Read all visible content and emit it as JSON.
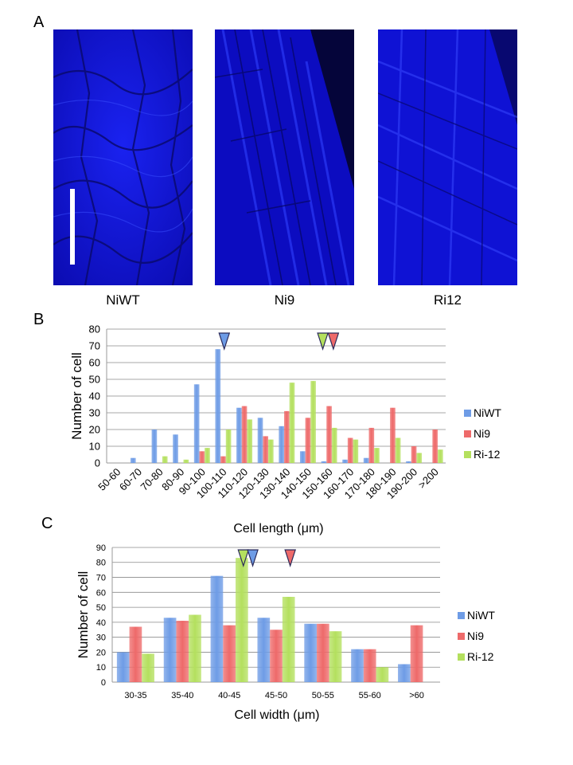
{
  "panels": {
    "a": {
      "letter": "A"
    },
    "b": {
      "letter": "B"
    },
    "c": {
      "letter": "C"
    }
  },
  "micrographs": [
    {
      "label": "NiWT"
    },
    {
      "label": "Ni9"
    },
    {
      "label": "Ri12"
    }
  ],
  "colors": {
    "series": [
      "#6e9ce6",
      "#ee6a6a",
      "#b4e05e"
    ],
    "micrograph_bg": "#1010d8",
    "arrow_outline": "#2a2a5a"
  },
  "chart_data": [
    {
      "type": "bar",
      "panel": "B",
      "xlabel": "Cell length (μm)",
      "ylabel": "Number of cell",
      "ylim": [
        0,
        80
      ],
      "yticks": [
        0,
        10,
        20,
        30,
        40,
        50,
        60,
        70,
        80
      ],
      "grid": true,
      "legend_position": "right",
      "categories": [
        "50-60",
        "60-70",
        "70-80",
        "80-90",
        "90-100",
        "100-110",
        "110-120",
        "120-130",
        "130-140",
        "140-150",
        "150-160",
        "160-170",
        "170-180",
        "180-190",
        "190-200",
        ">200"
      ],
      "series": [
        {
          "name": "NiWT",
          "values": [
            0,
            3,
            20,
            17,
            47,
            68,
            33,
            27,
            22,
            7,
            1,
            2,
            3,
            0,
            1,
            0
          ]
        },
        {
          "name": "Ni9",
          "values": [
            0,
            0,
            0,
            0,
            7,
            4,
            34,
            16,
            31,
            27,
            34,
            15,
            21,
            33,
            10,
            20
          ]
        },
        {
          "name": "Ri-12",
          "values": [
            0,
            0,
            4,
            2,
            9,
            20,
            26,
            14,
            48,
            49,
            21,
            14,
            9,
            15,
            6,
            8
          ]
        }
      ],
      "mean_markers": [
        {
          "series": "NiWT",
          "x": 105.5
        },
        {
          "series": "Ri-12",
          "x": 152
        },
        {
          "series": "Ni9",
          "x": 157
        }
      ]
    },
    {
      "type": "bar",
      "panel": "C",
      "xlabel": "Cell width (μm)",
      "ylabel": "Number of cell",
      "ylim": [
        0,
        90
      ],
      "yticks": [
        0,
        10,
        20,
        30,
        40,
        50,
        60,
        70,
        80,
        90
      ],
      "grid": true,
      "legend_position": "right",
      "categories": [
        "30-35",
        "35-40",
        "40-45",
        "45-50",
        "50-55",
        "55-60",
        ">60"
      ],
      "series": [
        {
          "name": "NiWT",
          "values": [
            20,
            43,
            71,
            43,
            39,
            22,
            12
          ]
        },
        {
          "name": "Ni9",
          "values": [
            37,
            41,
            38,
            35,
            39,
            22,
            38
          ]
        },
        {
          "name": "Ri-12",
          "values": [
            19,
            45,
            83,
            57,
            34,
            10,
            0
          ]
        }
      ],
      "mean_markers": [
        {
          "series": "Ri-12",
          "x": 44
        },
        {
          "series": "NiWT",
          "x": 45
        },
        {
          "series": "Ni9",
          "x": 49
        }
      ]
    }
  ]
}
